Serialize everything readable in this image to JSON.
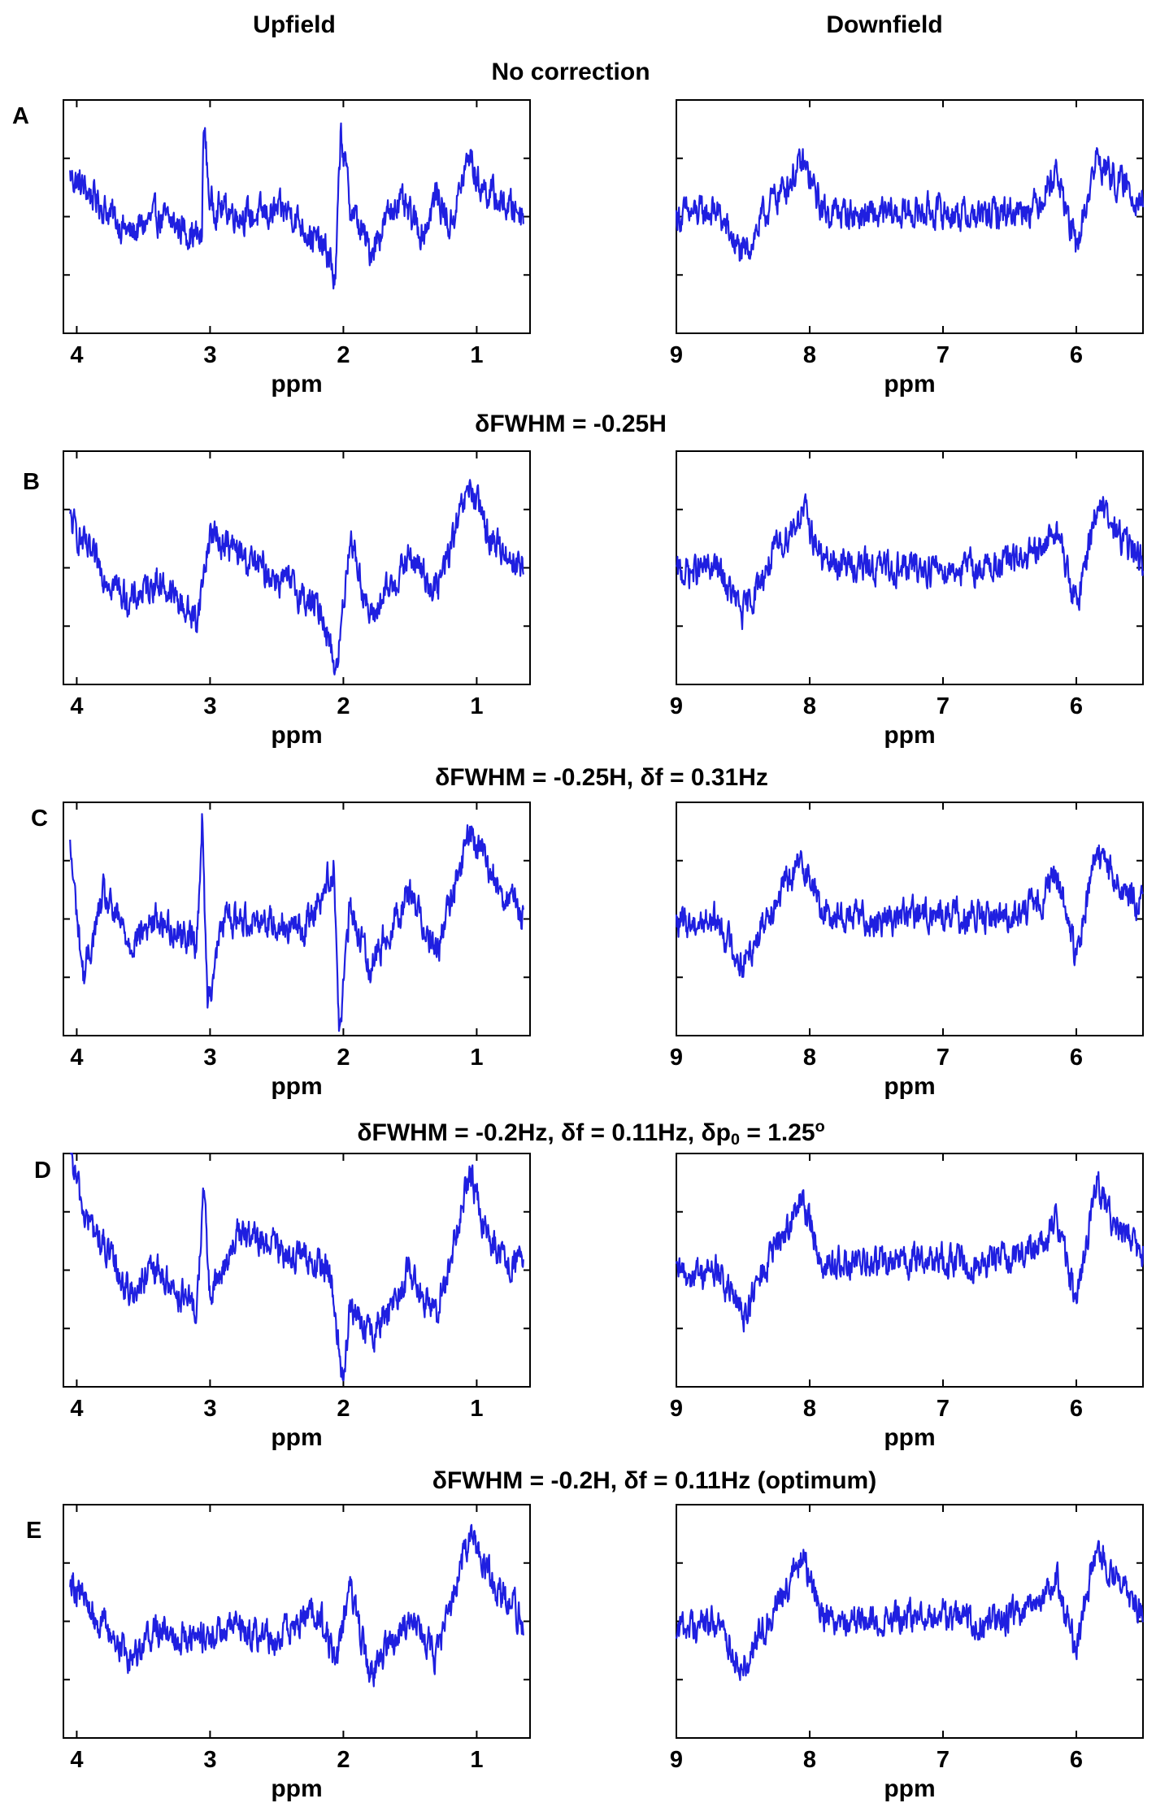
{
  "header": {
    "left": "Upfield",
    "right": "Downfield"
  },
  "colors": {
    "trace": "#1f1fe0",
    "axes": "#000000"
  },
  "panels": [
    {
      "letter": "A",
      "title": "No correction"
    },
    {
      "letter": "B",
      "title": "δFWHM = -0.25H"
    },
    {
      "letter": "C",
      "title": "δFWHM = -0.25H, δf = 0.31Hz"
    },
    {
      "letter": "D",
      "title": "δFWHM = -0.2Hz, δf = 0.11Hz, δp",
      "title_sub": "0",
      "title_tail": " = 1.25",
      "title_sup": "o"
    },
    {
      "letter": "E",
      "title": "δFWHM = -0.2H, δf = 0.11Hz  (optimum)"
    }
  ],
  "chart_data": [
    {
      "type": "line",
      "panel": "A",
      "side": "upfield",
      "xlabel": "ppm",
      "xlim": [
        4.1,
        0.6
      ],
      "xticks": [
        4,
        3,
        2,
        1
      ],
      "tick_labels": [
        "4",
        "3",
        "2",
        "1"
      ],
      "ylim": [
        -1,
        1
      ],
      "series": [
        {
          "points": [
            [
              4.05,
              0.35
            ],
            [
              3.9,
              0.2
            ],
            [
              3.6,
              -0.15
            ],
            [
              3.4,
              0.0
            ],
            [
              3.2,
              -0.1
            ],
            [
              3.06,
              -0.2
            ],
            [
              3.05,
              0.85
            ],
            [
              3.0,
              0.1
            ],
            [
              2.7,
              0.0
            ],
            [
              2.4,
              0.05
            ],
            [
              2.1,
              -0.35
            ],
            [
              2.06,
              -0.6
            ],
            [
              2.02,
              0.75
            ],
            [
              1.95,
              0.1
            ],
            [
              1.8,
              -0.3
            ],
            [
              1.6,
              0.15
            ],
            [
              1.4,
              -0.15
            ],
            [
              1.3,
              0.2
            ],
            [
              1.2,
              -0.1
            ],
            [
              1.05,
              0.55
            ],
            [
              1.0,
              0.3
            ],
            [
              0.8,
              0.1
            ],
            [
              0.65,
              0.05
            ]
          ]
        }
      ]
    },
    {
      "type": "line",
      "panel": "A",
      "side": "downfield",
      "xlabel": "ppm",
      "xlim": [
        9.0,
        5.5
      ],
      "xticks": [
        9,
        8,
        7,
        6
      ],
      "tick_labels": [
        "9",
        "8",
        "7",
        "6"
      ],
      "ylim": [
        -1,
        1
      ],
      "series": [
        {
          "points": [
            [
              9.0,
              0.0
            ],
            [
              8.7,
              0.05
            ],
            [
              8.5,
              -0.35
            ],
            [
              8.3,
              0.1
            ],
            [
              8.05,
              0.45
            ],
            [
              7.9,
              0.05
            ],
            [
              7.5,
              0.0
            ],
            [
              7.1,
              0.05
            ],
            [
              6.7,
              0.0
            ],
            [
              6.3,
              0.1
            ],
            [
              6.15,
              0.4
            ],
            [
              6.0,
              -0.3
            ],
            [
              5.85,
              0.5
            ],
            [
              5.7,
              0.3
            ],
            [
              5.5,
              0.15
            ]
          ]
        }
      ]
    },
    {
      "type": "line",
      "panel": "B",
      "side": "upfield",
      "xlabel": "ppm",
      "xlim": [
        4.1,
        0.6
      ],
      "xticks": [
        4,
        3,
        2,
        1
      ],
      "tick_labels": [
        "4",
        "3",
        "2",
        "1"
      ],
      "ylim": [
        -1,
        1
      ],
      "series": [
        {
          "points": [
            [
              4.05,
              0.4
            ],
            [
              3.9,
              0.1
            ],
            [
              3.6,
              -0.3
            ],
            [
              3.4,
              -0.1
            ],
            [
              3.1,
              -0.45
            ],
            [
              3.0,
              0.3
            ],
            [
              2.7,
              0.05
            ],
            [
              2.4,
              -0.15
            ],
            [
              2.15,
              -0.4
            ],
            [
              2.05,
              -0.9
            ],
            [
              1.95,
              0.3
            ],
            [
              1.8,
              -0.45
            ],
            [
              1.5,
              0.1
            ],
            [
              1.3,
              -0.2
            ],
            [
              1.05,
              0.7
            ],
            [
              0.9,
              0.25
            ],
            [
              0.65,
              0.0
            ]
          ]
        }
      ]
    },
    {
      "type": "line",
      "panel": "B",
      "side": "downfield",
      "xlabel": "ppm",
      "xlim": [
        9.0,
        5.5
      ],
      "xticks": [
        9,
        8,
        7,
        6
      ],
      "tick_labels": [
        "9",
        "8",
        "7",
        "6"
      ],
      "ylim": [
        -1,
        1
      ],
      "series": [
        {
          "points": [
            [
              9.0,
              -0.05
            ],
            [
              8.7,
              0.0
            ],
            [
              8.5,
              -0.4
            ],
            [
              8.3,
              0.05
            ],
            [
              8.05,
              0.5
            ],
            [
              7.9,
              0.05
            ],
            [
              7.5,
              0.0
            ],
            [
              7.1,
              0.0
            ],
            [
              6.7,
              0.0
            ],
            [
              6.3,
              0.1
            ],
            [
              6.15,
              0.35
            ],
            [
              6.0,
              -0.35
            ],
            [
              5.85,
              0.55
            ],
            [
              5.7,
              0.3
            ],
            [
              5.5,
              0.05
            ]
          ]
        }
      ]
    },
    {
      "type": "line",
      "panel": "C",
      "side": "upfield",
      "xlabel": "ppm",
      "xlim": [
        4.1,
        0.6
      ],
      "xticks": [
        4,
        3,
        2,
        1
      ],
      "tick_labels": [
        "4",
        "3",
        "2",
        "1"
      ],
      "ylim": [
        -1,
        1
      ],
      "series": [
        {
          "points": [
            [
              4.05,
              0.6
            ],
            [
              3.95,
              -0.5
            ],
            [
              3.8,
              0.2
            ],
            [
              3.6,
              -0.2
            ],
            [
              3.4,
              0.0
            ],
            [
              3.1,
              -0.2
            ],
            [
              3.06,
              0.85
            ],
            [
              3.02,
              -0.7
            ],
            [
              2.9,
              0.0
            ],
            [
              2.6,
              0.0
            ],
            [
              2.3,
              -0.1
            ],
            [
              2.07,
              0.45
            ],
            [
              2.03,
              -1.0
            ],
            [
              1.95,
              0.1
            ],
            [
              1.8,
              -0.4
            ],
            [
              1.5,
              0.25
            ],
            [
              1.3,
              -0.3
            ],
            [
              1.05,
              0.75
            ],
            [
              0.85,
              0.3
            ],
            [
              0.65,
              0.0
            ]
          ]
        }
      ]
    },
    {
      "type": "line",
      "panel": "C",
      "side": "downfield",
      "xlabel": "ppm",
      "xlim": [
        9.0,
        5.5
      ],
      "xticks": [
        9,
        8,
        7,
        6
      ],
      "tick_labels": [
        "9",
        "8",
        "7",
        "6"
      ],
      "ylim": [
        -1,
        1
      ],
      "series": [
        {
          "points": [
            [
              9.0,
              -0.05
            ],
            [
              8.7,
              0.0
            ],
            [
              8.5,
              -0.4
            ],
            [
              8.3,
              0.1
            ],
            [
              8.05,
              0.5
            ],
            [
              7.9,
              0.05
            ],
            [
              7.5,
              0.0
            ],
            [
              7.1,
              0.05
            ],
            [
              6.7,
              0.0
            ],
            [
              6.3,
              0.1
            ],
            [
              6.15,
              0.4
            ],
            [
              6.0,
              -0.35
            ],
            [
              5.85,
              0.6
            ],
            [
              5.7,
              0.3
            ],
            [
              5.5,
              0.1
            ]
          ]
        }
      ]
    },
    {
      "type": "line",
      "panel": "D",
      "side": "upfield",
      "xlabel": "ppm",
      "xlim": [
        4.1,
        0.6
      ],
      "xticks": [
        4,
        3,
        2,
        1
      ],
      "tick_labels": [
        "4",
        "3",
        "2",
        "1"
      ],
      "ylim": [
        -1,
        1
      ],
      "series": [
        {
          "points": [
            [
              4.05,
              1.0
            ],
            [
              3.95,
              0.5
            ],
            [
              3.8,
              0.2
            ],
            [
              3.6,
              -0.2
            ],
            [
              3.4,
              0.0
            ],
            [
              3.1,
              -0.35
            ],
            [
              3.05,
              0.7
            ],
            [
              3.0,
              -0.25
            ],
            [
              2.8,
              0.3
            ],
            [
              2.5,
              0.2
            ],
            [
              2.1,
              0.0
            ],
            [
              2.05,
              -0.5
            ],
            [
              2.0,
              -1.0
            ],
            [
              1.95,
              -0.3
            ],
            [
              1.8,
              -0.6
            ],
            [
              1.5,
              0.0
            ],
            [
              1.3,
              -0.4
            ],
            [
              1.05,
              0.8
            ],
            [
              0.9,
              0.25
            ],
            [
              0.65,
              0.0
            ]
          ]
        }
      ]
    },
    {
      "type": "line",
      "panel": "D",
      "side": "downfield",
      "xlabel": "ppm",
      "xlim": [
        9.0,
        5.5
      ],
      "xticks": [
        9,
        8,
        7,
        6
      ],
      "tick_labels": [
        "9",
        "8",
        "7",
        "6"
      ],
      "ylim": [
        -1,
        1
      ],
      "series": [
        {
          "points": [
            [
              9.0,
              -0.05
            ],
            [
              8.7,
              0.0
            ],
            [
              8.5,
              -0.4
            ],
            [
              8.3,
              0.1
            ],
            [
              8.05,
              0.6
            ],
            [
              7.9,
              0.05
            ],
            [
              7.5,
              0.05
            ],
            [
              7.1,
              0.1
            ],
            [
              6.7,
              0.05
            ],
            [
              6.3,
              0.2
            ],
            [
              6.15,
              0.45
            ],
            [
              6.0,
              -0.3
            ],
            [
              5.85,
              0.75
            ],
            [
              5.7,
              0.35
            ],
            [
              5.5,
              0.15
            ]
          ]
        }
      ]
    },
    {
      "type": "line",
      "panel": "E",
      "side": "upfield",
      "xlabel": "ppm",
      "xlim": [
        4.1,
        0.6
      ],
      "xticks": [
        4,
        3,
        2,
        1
      ],
      "tick_labels": [
        "4",
        "3",
        "2",
        "1"
      ],
      "ylim": [
        -1,
        1
      ],
      "series": [
        {
          "points": [
            [
              4.05,
              0.4
            ],
            [
              3.9,
              0.1
            ],
            [
              3.6,
              -0.3
            ],
            [
              3.4,
              -0.05
            ],
            [
              3.1,
              -0.15
            ],
            [
              2.8,
              -0.05
            ],
            [
              2.5,
              -0.15
            ],
            [
              2.2,
              0.1
            ],
            [
              2.05,
              -0.35
            ],
            [
              1.95,
              0.3
            ],
            [
              1.8,
              -0.45
            ],
            [
              1.5,
              0.05
            ],
            [
              1.3,
              -0.3
            ],
            [
              1.05,
              0.75
            ],
            [
              0.85,
              0.3
            ],
            [
              0.65,
              0.0
            ]
          ]
        }
      ]
    },
    {
      "type": "line",
      "panel": "E",
      "side": "downfield",
      "xlabel": "ppm",
      "xlim": [
        9.0,
        5.5
      ],
      "xticks": [
        9,
        8,
        7,
        6
      ],
      "tick_labels": [
        "9",
        "8",
        "7",
        "6"
      ],
      "ylim": [
        -1,
        1
      ],
      "series": [
        {
          "points": [
            [
              9.0,
              -0.05
            ],
            [
              8.7,
              0.0
            ],
            [
              8.5,
              -0.4
            ],
            [
              8.3,
              0.05
            ],
            [
              8.05,
              0.55
            ],
            [
              7.9,
              0.05
            ],
            [
              7.5,
              0.0
            ],
            [
              7.1,
              0.05
            ],
            [
              6.7,
              0.0
            ],
            [
              6.3,
              0.1
            ],
            [
              6.15,
              0.4
            ],
            [
              6.0,
              -0.3
            ],
            [
              5.85,
              0.65
            ],
            [
              5.7,
              0.35
            ],
            [
              5.5,
              0.1
            ]
          ]
        }
      ]
    }
  ]
}
